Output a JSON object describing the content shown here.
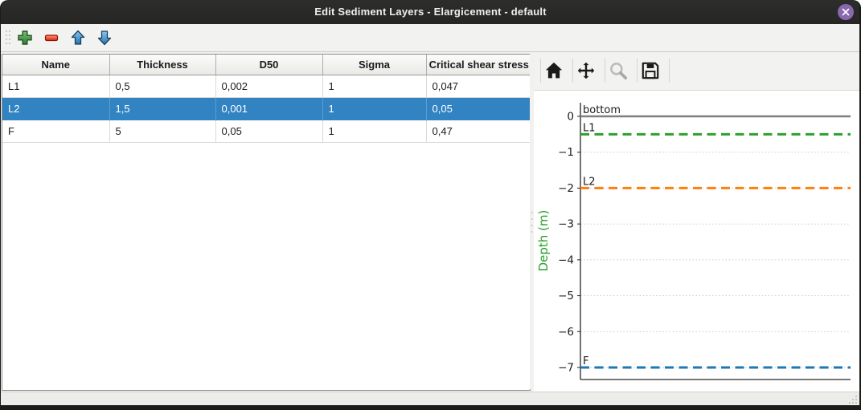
{
  "window": {
    "title": "Edit Sediment Layers - Elargicement - default",
    "controls": [
      "close"
    ]
  },
  "toolbar": {
    "buttons": [
      "add-layer",
      "remove-layer",
      "move-layer-up",
      "move-layer-down"
    ]
  },
  "table": {
    "headers": [
      "Name",
      "Thickness",
      "D50",
      "Sigma",
      "Critical shear stress"
    ],
    "rows": [
      [
        "L1",
        "0,5",
        "0,002",
        "1",
        "0,047"
      ],
      [
        "L2",
        "1,5",
        "0,001",
        "1",
        "0,05"
      ],
      [
        "F",
        "5",
        "0,05",
        "1",
        "0,47"
      ]
    ],
    "selected_row": 1,
    "selection_color": "#3283c2"
  },
  "chart_toolbar": {
    "buttons": [
      "home",
      "pan",
      "zoom",
      "save"
    ]
  },
  "chart_data": {
    "type": "line",
    "title": "",
    "xlabel": "",
    "ylabel": "Depth (m)",
    "ylabel_color": "#2ca02c",
    "ylim": [
      -7.35,
      0.38
    ],
    "yticks": [
      0,
      -1,
      -2,
      -3,
      -4,
      -5,
      -6,
      -7
    ],
    "grid": true,
    "grid_style": "dotted",
    "series": [
      {
        "name": "bottom",
        "label": "bottom",
        "depth": 0,
        "color": "#7f7f7f",
        "style": "solid",
        "width": 2.5
      },
      {
        "name": "L1",
        "label": "L1",
        "depth": -0.5,
        "color": "#2ca02c",
        "style": "dashed",
        "width": 3
      },
      {
        "name": "L2",
        "label": "L2",
        "depth": -2,
        "color": "#ff7f0e",
        "style": "dashed",
        "width": 3
      },
      {
        "name": "F",
        "label": "F",
        "depth": -7,
        "color": "#1f77b4",
        "style": "dashed",
        "width": 3
      }
    ]
  }
}
